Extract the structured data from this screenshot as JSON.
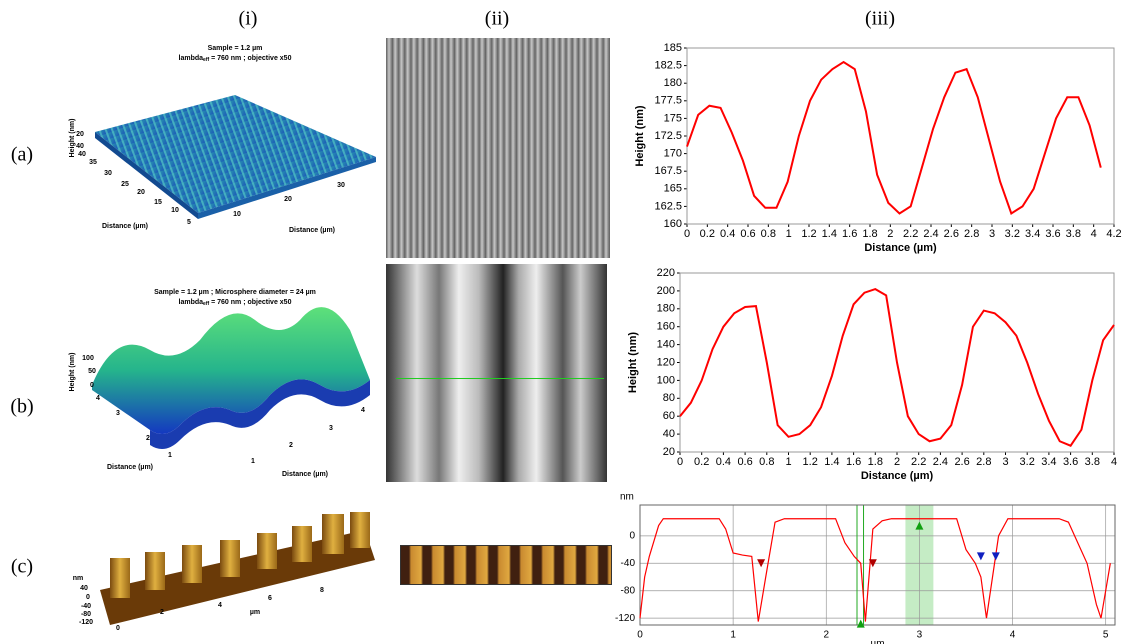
{
  "column_labels": [
    "(i)",
    "(ii)",
    "(iii)"
  ],
  "row_labels": [
    "(a)",
    "(b)",
    "(c)"
  ],
  "panels": {
    "a": {
      "title": "Sample = 1.2 µm",
      "subtitle": {
        "pre": "lambda",
        "sub": "eff",
        "post": " = 760 nm ; objective x50"
      },
      "z_label": "Height (nm)",
      "z_ticks": [
        20,
        40
      ],
      "left_label": "Distance (µm)",
      "left_ticks": [
        40,
        35,
        30,
        25,
        20,
        15,
        10,
        5
      ],
      "right_label": "Distance (µm)",
      "right_ticks": [
        10,
        20,
        30
      ]
    },
    "b": {
      "title": "Sample = 1.2 µm ; Microsphere diameter = 24 µm",
      "subtitle": {
        "pre": "lambda",
        "sub": "eff",
        "post": " = 760 nm ; objective x50"
      },
      "z_label": "Height (nm)",
      "z_ticks": [
        100,
        50,
        0
      ],
      "left_label": "Distance (µm)",
      "left_ticks": [
        4,
        3,
        2,
        1
      ],
      "right_label": "Distance (µm)",
      "right_ticks": [
        1,
        2,
        3,
        4
      ]
    },
    "c": {
      "z_label": "nm",
      "z_ticks": [
        40,
        0,
        -40,
        -80,
        -120
      ],
      "x_label": "µm",
      "x_ticks": [
        0,
        2,
        4,
        6,
        8
      ]
    }
  },
  "chart_data": [
    {
      "type": "line",
      "x_label": "Distance (µm)",
      "y_label": "Height (nm)",
      "color": "#ff0000",
      "grid": false,
      "x": [
        0,
        0.11,
        0.22,
        0.33,
        0.44,
        0.55,
        0.66,
        0.77,
        0.88,
        0.99,
        1.1,
        1.21,
        1.32,
        1.43,
        1.54,
        1.65,
        1.76,
        1.87,
        1.98,
        2.09,
        2.2,
        2.31,
        2.42,
        2.53,
        2.64,
        2.75,
        2.86,
        2.97,
        3.08,
        3.19,
        3.3,
        3.41,
        3.52,
        3.63,
        3.74,
        3.85,
        3.96,
        4.07
      ],
      "values": [
        171,
        175.5,
        176.8,
        176.5,
        173,
        169,
        164,
        162.3,
        162.3,
        166,
        172.5,
        177.5,
        180.5,
        182,
        183,
        182,
        176,
        167,
        163,
        161.5,
        162.5,
        168,
        173.5,
        178,
        181.5,
        182,
        178,
        172,
        166,
        161.5,
        162.5,
        165,
        170,
        175,
        178,
        178,
        174,
        168
      ],
      "xlim": [
        0,
        4.2
      ],
      "ylim": [
        160,
        185
      ],
      "xticks": [
        0,
        0.2,
        0.4,
        0.6,
        0.8,
        1,
        1.2,
        1.4,
        1.6,
        1.8,
        2,
        2.2,
        2.4,
        2.6,
        2.8,
        3,
        3.2,
        3.4,
        3.6,
        3.8,
        4,
        4.2
      ],
      "yticks": [
        160,
        162.5,
        165,
        167.5,
        170,
        172.5,
        175,
        177.5,
        180,
        182.5,
        185
      ]
    },
    {
      "type": "line",
      "x_label": "Distance (µm)",
      "y_label": "Height (nm)",
      "color": "#ff0000",
      "grid": false,
      "x": [
        0,
        0.1,
        0.2,
        0.3,
        0.4,
        0.5,
        0.6,
        0.7,
        0.8,
        0.9,
        1,
        1.1,
        1.2,
        1.3,
        1.4,
        1.5,
        1.6,
        1.7,
        1.8,
        1.9,
        2,
        2.1,
        2.2,
        2.3,
        2.4,
        2.5,
        2.6,
        2.7,
        2.8,
        2.9,
        3,
        3.1,
        3.2,
        3.3,
        3.4,
        3.5,
        3.6,
        3.7,
        3.8,
        3.9,
        4
      ],
      "values": [
        60,
        75,
        100,
        135,
        160,
        175,
        182,
        183,
        120,
        50,
        37,
        40,
        50,
        70,
        105,
        150,
        185,
        198,
        202,
        195,
        120,
        60,
        40,
        32,
        35,
        50,
        95,
        160,
        178,
        175,
        165,
        150,
        120,
        85,
        55,
        32,
        27,
        45,
        100,
        145,
        162
      ],
      "xlim": [
        0,
        4
      ],
      "ylim": [
        20,
        220
      ],
      "xticks": [
        0,
        0.2,
        0.4,
        0.6,
        0.8,
        1,
        1.2,
        1.4,
        1.6,
        1.8,
        2,
        2.2,
        2.4,
        2.6,
        2.8,
        3,
        3.2,
        3.4,
        3.6,
        3.8,
        4
      ],
      "yticks": [
        20,
        40,
        60,
        80,
        100,
        120,
        140,
        160,
        180,
        200,
        220
      ]
    },
    {
      "type": "line",
      "x_label": "µm",
      "y_label": "nm",
      "color": "#ff0000",
      "grid": true,
      "x": [
        0,
        0.05,
        0.1,
        0.2,
        0.25,
        0.85,
        0.92,
        1,
        1.1,
        1.2,
        1.27,
        1.35,
        1.45,
        1.55,
        2.1,
        2.2,
        2.3,
        2.37,
        2.42,
        2.5,
        2.6,
        2.7,
        3.4,
        3.5,
        3.6,
        3.66,
        3.72,
        3.85,
        3.95,
        4.5,
        4.6,
        4.7,
        4.8,
        4.9,
        4.95,
        5.05
      ],
      "values": [
        -120,
        -60,
        -30,
        15,
        25,
        25,
        10,
        -25,
        -28,
        -30,
        -125,
        -60,
        20,
        25,
        25,
        -10,
        -30,
        -40,
        -125,
        10,
        22,
        25,
        25,
        -20,
        -40,
        -60,
        -120,
        0,
        25,
        25,
        20,
        -10,
        -40,
        -100,
        -120,
        -40
      ],
      "xlim": [
        0,
        5.1
      ],
      "ylim": [
        -130,
        45
      ],
      "xticks": [
        0,
        1,
        2,
        3,
        4,
        5
      ],
      "yticks": [
        0,
        -40,
        -80,
        -120
      ],
      "highlight": [
        2.85,
        3.15
      ],
      "cursor_lines": [
        2.33,
        2.4
      ],
      "markers": [
        {
          "x": 1.3,
          "y": -40,
          "color": "#b00000",
          "dir": "down"
        },
        {
          "x": 2.5,
          "y": -40,
          "color": "#b00000",
          "dir": "down"
        },
        {
          "x": 3.66,
          "y": -30,
          "color": "#1020c0",
          "dir": "down"
        },
        {
          "x": 3.82,
          "y": -30,
          "color": "#1020c0",
          "dir": "down"
        },
        {
          "x": 2.37,
          "y": -128,
          "color": "#10a010",
          "dir": "up"
        },
        {
          "x": 3.0,
          "y": 15,
          "color": "#10a010",
          "dir": "up"
        }
      ]
    }
  ]
}
